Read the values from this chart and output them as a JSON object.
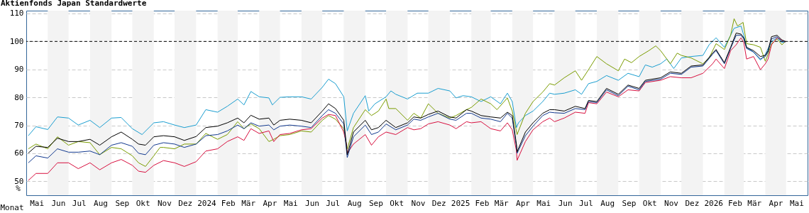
{
  "chart_data": {
    "type": "line",
    "title": "Aktienfonds Japan Standardwerte",
    "xlabel": "Monat",
    "ylabel": "%",
    "xlim": [
      "2023-05-01",
      "2026-06-01"
    ],
    "ylim": [
      45,
      111
    ],
    "yticks": [
      50,
      60,
      70,
      80,
      90,
      100,
      110
    ],
    "xticks": [
      {
        "value": "2023-05-16",
        "label": "Mai"
      },
      {
        "value": "2023-06-16",
        "label": "Jun"
      },
      {
        "value": "2023-07-16",
        "label": "Jul"
      },
      {
        "value": "2023-08-16",
        "label": "Aug"
      },
      {
        "value": "2023-09-16",
        "label": "Sep"
      },
      {
        "value": "2023-10-16",
        "label": "Okt"
      },
      {
        "value": "2023-11-16",
        "label": "Nov"
      },
      {
        "value": "2023-12-16",
        "label": "Dez"
      },
      {
        "value": "2024-01-16",
        "label": "2024"
      },
      {
        "value": "2024-02-16",
        "label": "Feb"
      },
      {
        "value": "2024-03-16",
        "label": "Mär"
      },
      {
        "value": "2024-04-16",
        "label": "Apr"
      },
      {
        "value": "2024-05-16",
        "label": "Mai"
      },
      {
        "value": "2024-06-16",
        "label": "Jun"
      },
      {
        "value": "2024-07-16",
        "label": "Jul"
      },
      {
        "value": "2024-08-16",
        "label": "Aug"
      },
      {
        "value": "2024-09-16",
        "label": "Sep"
      },
      {
        "value": "2024-10-16",
        "label": "Okt"
      },
      {
        "value": "2024-11-16",
        "label": "Nov"
      },
      {
        "value": "2024-12-16",
        "label": "Dez"
      },
      {
        "value": "2025-01-16",
        "label": "2025"
      },
      {
        "value": "2025-02-16",
        "label": "Feb"
      },
      {
        "value": "2025-03-16",
        "label": "Mär"
      },
      {
        "value": "2025-04-16",
        "label": "Apr"
      },
      {
        "value": "2025-05-16",
        "label": "Mai"
      },
      {
        "value": "2025-06-16",
        "label": "Jun"
      },
      {
        "value": "2025-07-16",
        "label": "Jul"
      },
      {
        "value": "2025-08-16",
        "label": "Aug"
      },
      {
        "value": "2025-09-16",
        "label": "Sep"
      },
      {
        "value": "2025-10-16",
        "label": "Okt"
      },
      {
        "value": "2025-11-16",
        "label": "Nov"
      },
      {
        "value": "2025-12-16",
        "label": "Dez"
      },
      {
        "value": "2026-01-16",
        "label": "2026"
      },
      {
        "value": "2026-02-16",
        "label": "Feb"
      },
      {
        "value": "2026-03-16",
        "label": "Mär"
      },
      {
        "value": "2026-04-16",
        "label": "Apr"
      },
      {
        "value": "2026-05-16",
        "label": "Mai"
      }
    ],
    "grid": "y",
    "ref_lines": [
      {
        "axis": "y",
        "value": 100,
        "label": null,
        "color": "#000000",
        "line_style": "dashed"
      }
    ],
    "bands": [
      {
        "axis": "x",
        "from": "2023-06-01",
        "to": "2023-07-01",
        "label": null,
        "color": "#f3f3f3"
      },
      {
        "axis": "x",
        "from": "2023-08-01",
        "to": "2023-09-01",
        "label": null,
        "color": "#f3f3f3"
      },
      {
        "axis": "x",
        "from": "2023-10-01",
        "to": "2023-11-01",
        "label": null,
        "color": "#f3f3f3"
      },
      {
        "axis": "x",
        "from": "2023-12-01",
        "to": "2024-01-01",
        "label": null,
        "color": "#f3f3f3"
      },
      {
        "axis": "x",
        "from": "2024-02-01",
        "to": "2024-03-01",
        "label": null,
        "color": "#f3f3f3"
      },
      {
        "axis": "x",
        "from": "2024-04-01",
        "to": "2024-05-01",
        "label": null,
        "color": "#f3f3f3"
      },
      {
        "axis": "x",
        "from": "2024-06-01",
        "to": "2024-07-01",
        "label": null,
        "color": "#f3f3f3"
      },
      {
        "axis": "x",
        "from": "2024-08-01",
        "to": "2024-09-01",
        "label": null,
        "color": "#f3f3f3"
      },
      {
        "axis": "x",
        "from": "2024-10-01",
        "to": "2024-11-01",
        "label": null,
        "color": "#f3f3f3"
      },
      {
        "axis": "x",
        "from": "2024-12-01",
        "to": "2025-01-01",
        "label": null,
        "color": "#f3f3f3"
      },
      {
        "axis": "x",
        "from": "2025-02-01",
        "to": "2025-03-01",
        "label": null,
        "color": "#f3f3f3"
      },
      {
        "axis": "x",
        "from": "2025-04-01",
        "to": "2025-05-01",
        "label": null,
        "color": "#f3f3f3"
      },
      {
        "axis": "x",
        "from": "2025-06-01",
        "to": "2025-07-01",
        "label": null,
        "color": "#f3f3f3"
      },
      {
        "axis": "x",
        "from": "2025-08-01",
        "to": "2025-09-01",
        "label": null,
        "color": "#f3f3f3"
      },
      {
        "axis": "x",
        "from": "2025-10-01",
        "to": "2025-11-01",
        "label": null,
        "color": "#f3f3f3"
      },
      {
        "axis": "x",
        "from": "2025-12-01",
        "to": "2026-01-01",
        "label": null,
        "color": "#f3f3f3"
      },
      {
        "axis": "x",
        "from": "2026-02-01",
        "to": "2026-03-01",
        "label": null,
        "color": "#f3f3f3"
      },
      {
        "axis": "x",
        "from": "2026-04-01",
        "to": "2026-05-01",
        "label": null,
        "color": "#f3f3f3"
      }
    ],
    "series": [
      {
        "color": "#1a9ed0",
        "x": [
          "2023-05-04",
          "2023-05-15",
          "2023-06-01",
          "2023-06-15",
          "2023-07-01",
          "2023-07-15",
          "2023-08-01",
          "2023-08-15",
          "2023-09-01",
          "2023-09-15",
          "2023-10-01",
          "2023-10-15",
          "2023-11-01",
          "2023-11-15",
          "2023-12-01",
          "2023-12-15",
          "2024-01-01",
          "2024-01-15",
          "2024-02-01",
          "2024-02-15",
          "2024-03-01",
          "2024-03-10",
          "2024-03-20",
          "2024-04-01",
          "2024-04-15",
          "2024-04-20",
          "2024-05-01",
          "2024-05-15",
          "2024-06-01",
          "2024-06-15",
          "2024-07-01",
          "2024-07-10",
          "2024-07-20",
          "2024-08-01",
          "2024-08-06",
          "2024-08-15",
          "2024-09-01",
          "2024-09-06",
          "2024-09-15",
          "2024-10-01",
          "2024-10-08",
          "2024-10-15",
          "2024-11-01",
          "2024-11-15",
          "2024-12-01",
          "2024-12-15",
          "2025-01-01",
          "2025-01-10",
          "2025-01-20",
          "2025-02-01",
          "2025-02-15",
          "2025-03-01",
          "2025-03-15",
          "2025-03-25",
          "2025-04-01",
          "2025-04-07",
          "2025-04-10",
          "2025-04-20",
          "2025-05-01",
          "2025-05-15",
          "2025-05-25",
          "2025-06-01",
          "2025-06-15",
          "2025-07-01",
          "2025-07-10",
          "2025-07-20",
          "2025-08-01",
          "2025-08-15",
          "2025-09-01",
          "2025-09-15",
          "2025-10-01",
          "2025-10-10",
          "2025-10-20",
          "2025-11-01",
          "2025-11-10",
          "2025-11-20",
          "2025-12-01",
          "2025-12-15",
          "2026-01-01",
          "2026-01-10",
          "2026-01-20",
          "2026-02-01",
          "2026-02-10",
          "2026-02-15",
          "2026-02-25",
          "2026-03-01",
          "2026-03-05",
          "2026-03-15",
          "2026-03-25",
          "2026-04-01",
          "2026-04-10",
          "2026-04-18",
          "2026-04-25",
          "2026-04-30"
        ],
        "values": [
          66.3,
          69.5,
          68.5,
          73.0,
          72.6,
          70.1,
          71.8,
          69.2,
          72.6,
          72.8,
          68.8,
          66.7,
          70.9,
          71.3,
          70.1,
          69.2,
          70.1,
          75.6,
          74.7,
          76.8,
          79.4,
          77.3,
          82.1,
          80.2,
          79.8,
          77.3,
          80.0,
          80.2,
          80.2,
          79.4,
          83.6,
          86.5,
          84.9,
          80.2,
          68.0,
          74.3,
          80.6,
          75.1,
          77.7,
          80.2,
          82.3,
          81.1,
          79.4,
          81.5,
          81.5,
          83.2,
          82.3,
          79.8,
          80.6,
          80.2,
          78.5,
          80.2,
          77.7,
          81.5,
          78.5,
          69.2,
          70.9,
          73.5,
          75.1,
          78.5,
          81.5,
          81.1,
          81.5,
          82.7,
          81.1,
          84.9,
          85.7,
          87.8,
          86.1,
          88.6,
          87.4,
          91.6,
          90.8,
          92.0,
          93.7,
          90.3,
          94.1,
          94.6,
          95.0,
          98.8,
          101.3,
          97.9,
          102.2,
          104.7,
          105.5,
          102.2,
          97.9,
          96.2,
          93.3,
          95.4,
          100.0,
          101.3,
          99.6,
          100.0
        ]
      },
      {
        "color": "#7a9c00",
        "x": [
          "2023-05-04",
          "2023-05-15",
          "2023-06-01",
          "2023-06-15",
          "2023-07-01",
          "2023-07-15",
          "2023-08-01",
          "2023-08-15",
          "2023-09-01",
          "2023-09-15",
          "2023-10-01",
          "2023-10-10",
          "2023-10-20",
          "2023-11-01",
          "2023-11-10",
          "2023-11-15",
          "2023-12-01",
          "2023-12-15",
          "2024-01-01",
          "2024-01-15",
          "2024-02-01",
          "2024-02-15",
          "2024-03-01",
          "2024-03-10",
          "2024-03-20",
          "2024-04-01",
          "2024-04-15",
          "2024-04-22",
          "2024-05-01",
          "2024-05-15",
          "2024-06-01",
          "2024-06-15",
          "2024-07-01",
          "2024-07-10",
          "2024-07-20",
          "2024-08-01",
          "2024-08-06",
          "2024-08-15",
          "2024-09-01",
          "2024-09-10",
          "2024-09-20",
          "2024-10-01",
          "2024-10-05",
          "2024-10-15",
          "2024-11-01",
          "2024-11-10",
          "2024-11-20",
          "2024-12-01",
          "2024-12-15",
          "2025-01-01",
          "2025-01-10",
          "2025-01-25",
          "2025-02-01",
          "2025-02-15",
          "2025-03-01",
          "2025-03-10",
          "2025-03-25",
          "2025-04-01",
          "2025-04-08",
          "2025-04-20",
          "2025-05-01",
          "2025-05-15",
          "2025-05-25",
          "2025-06-01",
          "2025-06-15",
          "2025-07-01",
          "2025-07-10",
          "2025-07-20",
          "2025-08-01",
          "2025-08-15",
          "2025-09-01",
          "2025-09-10",
          "2025-09-20",
          "2025-10-01",
          "2025-10-15",
          "2025-10-25",
          "2025-11-01",
          "2025-11-15",
          "2025-11-25",
          "2025-12-01",
          "2025-12-15",
          "2026-01-01",
          "2026-01-10",
          "2026-01-20",
          "2026-02-01",
          "2026-02-10",
          "2026-02-15",
          "2026-02-20",
          "2026-02-28",
          "2026-03-05",
          "2026-03-15",
          "2026-03-25",
          "2026-04-01",
          "2026-04-05",
          "2026-04-10",
          "2026-04-18",
          "2026-04-25",
          "2026-04-30"
        ],
        "values": [
          61.6,
          63.3,
          61.6,
          65.9,
          62.9,
          64.2,
          63.8,
          59.5,
          62.1,
          61.6,
          59.1,
          56.6,
          55.3,
          59.1,
          62.1,
          62.1,
          61.6,
          63.3,
          63.3,
          67.1,
          65.0,
          66.7,
          71.3,
          68.8,
          70.5,
          68.8,
          64.2,
          65.0,
          66.3,
          66.7,
          68.0,
          67.6,
          71.8,
          73.5,
          72.2,
          68.8,
          61.5,
          69.2,
          75.6,
          73.5,
          75.1,
          79.4,
          76.0,
          76.0,
          71.8,
          74.3,
          72.6,
          77.7,
          74.3,
          72.6,
          73.5,
          75.6,
          76.4,
          79.4,
          77.7,
          75.6,
          79.8,
          75.1,
          66.7,
          74.3,
          78.5,
          81.9,
          84.9,
          84.4,
          87.0,
          89.5,
          86.1,
          89.9,
          94.6,
          92.0,
          89.5,
          93.7,
          92.4,
          94.6,
          96.7,
          98.4,
          96.7,
          92.0,
          95.8,
          95.0,
          94.1,
          92.0,
          94.1,
          99.2,
          97.1,
          102.2,
          108.1,
          105.5,
          106.8,
          99.2,
          98.8,
          97.9,
          92.9,
          95.4,
          99.2,
          100.9,
          98.8,
          100.0
        ]
      },
      {
        "color": "#d8103f",
        "x": [
          "2023-05-04",
          "2023-05-15",
          "2023-06-01",
          "2023-06-15",
          "2023-07-01",
          "2023-07-15",
          "2023-08-01",
          "2023-08-15",
          "2023-09-01",
          "2023-09-15",
          "2023-10-01",
          "2023-10-10",
          "2023-10-20",
          "2023-11-01",
          "2023-11-15",
          "2023-12-01",
          "2023-12-15",
          "2024-01-01",
          "2024-01-15",
          "2024-02-01",
          "2024-02-15",
          "2024-03-01",
          "2024-03-10",
          "2024-03-20",
          "2024-04-01",
          "2024-04-15",
          "2024-04-22",
          "2024-05-01",
          "2024-05-15",
          "2024-06-01",
          "2024-06-15",
          "2024-07-01",
          "2024-07-10",
          "2024-07-20",
          "2024-08-01",
          "2024-08-05",
          "2024-08-06",
          "2024-08-15",
          "2024-09-01",
          "2024-09-10",
          "2024-09-20",
          "2024-10-01",
          "2024-10-15",
          "2024-11-01",
          "2024-11-10",
          "2024-11-20",
          "2024-12-01",
          "2024-12-15",
          "2025-01-01",
          "2025-01-10",
          "2025-01-25",
          "2025-02-01",
          "2025-02-15",
          "2025-03-01",
          "2025-03-15",
          "2025-03-25",
          "2025-04-01",
          "2025-04-07",
          "2025-04-08",
          "2025-04-20",
          "2025-05-01",
          "2025-05-15",
          "2025-05-25",
          "2025-06-01",
          "2025-06-15",
          "2025-07-01",
          "2025-07-15",
          "2025-07-20",
          "2025-08-01",
          "2025-08-15",
          "2025-09-01",
          "2025-09-15",
          "2025-10-01",
          "2025-10-10",
          "2025-11-01",
          "2025-11-15",
          "2025-12-01",
          "2025-12-15",
          "2026-01-01",
          "2026-01-15",
          "2026-01-20",
          "2026-02-01",
          "2026-02-10",
          "2026-02-18",
          "2026-02-25",
          "2026-03-01",
          "2026-03-05",
          "2026-03-15",
          "2026-03-25",
          "2026-04-01",
          "2026-04-05",
          "2026-04-10",
          "2026-04-18",
          "2026-04-25",
          "2026-04-30"
        ],
        "values": [
          50.3,
          52.8,
          52.8,
          56.6,
          56.6,
          54.5,
          56.6,
          54.1,
          56.6,
          57.8,
          55.7,
          53.6,
          53.2,
          55.7,
          57.4,
          56.6,
          55.3,
          57.0,
          60.8,
          61.6,
          64.2,
          65.9,
          64.6,
          68.8,
          67.1,
          68.0,
          64.2,
          66.7,
          67.1,
          68.4,
          68.8,
          72.6,
          73.9,
          73.5,
          67.6,
          63.0,
          60.0,
          63.3,
          66.7,
          62.9,
          65.9,
          67.6,
          66.7,
          69.2,
          68.4,
          68.8,
          70.5,
          71.3,
          70.1,
          68.8,
          71.3,
          70.9,
          71.3,
          68.8,
          68.0,
          70.9,
          68.4,
          61.0,
          57.5,
          64.2,
          68.4,
          71.3,
          72.6,
          71.3,
          72.6,
          74.7,
          74.3,
          78.1,
          77.7,
          81.9,
          80.2,
          82.7,
          82.3,
          85.3,
          86.1,
          87.4,
          87.0,
          87.0,
          88.6,
          92.0,
          93.7,
          90.3,
          96.7,
          98.8,
          101.3,
          99.6,
          93.7,
          94.6,
          89.9,
          92.0,
          93.7,
          98.8,
          101.3,
          100.5,
          99.8
        ]
      },
      {
        "color": "#12398f",
        "x": [
          "2023-05-04",
          "2023-05-15",
          "2023-06-01",
          "2023-06-15",
          "2023-07-01",
          "2023-07-15",
          "2023-08-01",
          "2023-08-15",
          "2023-09-01",
          "2023-09-15",
          "2023-10-01",
          "2023-10-10",
          "2023-10-20",
          "2023-11-01",
          "2023-11-15",
          "2023-12-01",
          "2023-12-15",
          "2024-01-01",
          "2024-01-15",
          "2024-02-01",
          "2024-02-15",
          "2024-03-01",
          "2024-03-10",
          "2024-03-20",
          "2024-04-01",
          "2024-04-15",
          "2024-04-22",
          "2024-05-01",
          "2024-05-15",
          "2024-06-01",
          "2024-06-15",
          "2024-07-01",
          "2024-07-10",
          "2024-07-20",
          "2024-08-01",
          "2024-08-05",
          "2024-08-06",
          "2024-08-15",
          "2024-09-01",
          "2024-09-10",
          "2024-09-20",
          "2024-10-01",
          "2024-10-15",
          "2024-11-01",
          "2024-11-10",
          "2024-11-20",
          "2024-12-01",
          "2024-12-15",
          "2025-01-01",
          "2025-01-10",
          "2025-01-25",
          "2025-02-01",
          "2025-02-15",
          "2025-03-01",
          "2025-03-15",
          "2025-03-25",
          "2025-04-01",
          "2025-04-07",
          "2025-04-08",
          "2025-04-20",
          "2025-05-01",
          "2025-05-15",
          "2025-05-25",
          "2025-06-01",
          "2025-06-15",
          "2025-07-01",
          "2025-07-15",
          "2025-07-20",
          "2025-08-01",
          "2025-08-15",
          "2025-09-01",
          "2025-09-15",
          "2025-10-01",
          "2025-10-10",
          "2025-11-01",
          "2025-11-15",
          "2025-12-01",
          "2025-12-15",
          "2026-01-01",
          "2026-01-15",
          "2026-01-20",
          "2026-02-01",
          "2026-02-10",
          "2026-02-18",
          "2026-02-25",
          "2026-03-01",
          "2026-03-05",
          "2026-03-15",
          "2026-03-25",
          "2026-04-01",
          "2026-04-05",
          "2026-04-10",
          "2026-04-18",
          "2026-04-25",
          "2026-04-30"
        ],
        "values": [
          56.6,
          59.1,
          58.3,
          61.6,
          60.4,
          60.4,
          60.8,
          59.5,
          62.9,
          63.8,
          62.5,
          60.0,
          59.5,
          62.9,
          63.8,
          63.3,
          62.1,
          63.3,
          66.3,
          66.7,
          68.0,
          70.1,
          68.8,
          70.9,
          69.7,
          70.1,
          68.4,
          69.7,
          70.1,
          69.7,
          69.2,
          73.5,
          75.6,
          74.3,
          70.5,
          61.0,
          58.5,
          65.9,
          70.1,
          66.7,
          67.6,
          70.5,
          68.4,
          70.1,
          72.2,
          71.8,
          73.0,
          74.3,
          72.2,
          71.8,
          74.3,
          74.3,
          72.6,
          72.2,
          71.3,
          74.3,
          72.6,
          62.5,
          60.0,
          66.3,
          69.7,
          73.5,
          74.7,
          74.5,
          74.3,
          76.0,
          75.6,
          78.5,
          78.1,
          82.7,
          80.6,
          84.0,
          82.7,
          85.7,
          86.5,
          88.6,
          88.2,
          90.8,
          91.2,
          95.4,
          96.7,
          92.0,
          97.5,
          102.2,
          102.2,
          100.9,
          97.5,
          96.2,
          93.7,
          94.6,
          96.2,
          100.9,
          101.7,
          100.0,
          99.8
        ]
      },
      {
        "color": "#000000",
        "x": [
          "2023-05-04",
          "2023-05-15",
          "2023-06-01",
          "2023-06-15",
          "2023-07-01",
          "2023-07-15",
          "2023-08-01",
          "2023-08-15",
          "2023-09-01",
          "2023-09-15",
          "2023-10-01",
          "2023-10-10",
          "2023-10-20",
          "2023-11-01",
          "2023-11-15",
          "2023-12-01",
          "2023-12-15",
          "2024-01-01",
          "2024-01-15",
          "2024-02-01",
          "2024-02-15",
          "2024-03-01",
          "2024-03-10",
          "2024-03-20",
          "2024-04-01",
          "2024-04-15",
          "2024-04-22",
          "2024-05-01",
          "2024-05-15",
          "2024-06-01",
          "2024-06-15",
          "2024-07-01",
          "2024-07-10",
          "2024-07-20",
          "2024-08-01",
          "2024-08-05",
          "2024-08-06",
          "2024-08-15",
          "2024-09-01",
          "2024-09-10",
          "2024-09-20",
          "2024-10-01",
          "2024-10-15",
          "2024-11-01",
          "2024-11-10",
          "2024-11-20",
          "2024-12-01",
          "2024-12-15",
          "2025-01-01",
          "2025-01-10",
          "2025-01-25",
          "2025-02-01",
          "2025-02-15",
          "2025-03-01",
          "2025-03-15",
          "2025-03-25",
          "2025-04-01",
          "2025-04-07",
          "2025-04-08",
          "2025-04-20",
          "2025-05-01",
          "2025-05-15",
          "2025-05-25",
          "2025-06-01",
          "2025-06-15",
          "2025-07-01",
          "2025-07-15",
          "2025-07-20",
          "2025-08-01",
          "2025-08-15",
          "2025-09-01",
          "2025-09-15",
          "2025-10-01",
          "2025-10-10",
          "2025-11-01",
          "2025-11-15",
          "2025-12-01",
          "2025-12-15",
          "2026-01-01",
          "2026-01-15",
          "2026-01-20",
          "2026-02-01",
          "2026-02-10",
          "2026-02-18",
          "2026-02-25",
          "2026-03-01",
          "2026-03-05",
          "2026-03-15",
          "2026-03-25",
          "2026-04-01",
          "2026-04-05",
          "2026-04-10",
          "2026-04-18",
          "2026-04-25",
          "2026-04-30"
        ],
        "values": [
          60.1,
          62.5,
          62.1,
          65.4,
          64.2,
          64.2,
          65.0,
          62.9,
          65.9,
          67.6,
          65.0,
          63.3,
          62.9,
          65.9,
          66.3,
          65.9,
          64.6,
          66.0,
          69.2,
          69.7,
          70.9,
          72.6,
          70.9,
          73.6,
          72.2,
          72.6,
          70.1,
          71.8,
          72.2,
          71.8,
          70.9,
          75.1,
          77.7,
          76.0,
          71.8,
          62.5,
          59.5,
          67.6,
          71.8,
          68.4,
          69.2,
          71.8,
          69.2,
          70.9,
          73.0,
          72.6,
          73.9,
          75.1,
          73.0,
          72.6,
          75.6,
          75.1,
          73.5,
          73.0,
          72.6,
          74.7,
          73.5,
          63.3,
          60.5,
          67.6,
          70.9,
          74.3,
          75.6,
          75.6,
          75.1,
          76.8,
          76.0,
          78.9,
          78.5,
          83.2,
          81.1,
          84.4,
          83.2,
          86.1,
          87.0,
          89.1,
          88.6,
          91.2,
          91.6,
          95.8,
          97.1,
          92.4,
          97.9,
          103.0,
          102.6,
          101.3,
          97.9,
          96.7,
          94.6,
          95.0,
          96.7,
          101.7,
          102.2,
          100.5,
          100.0
        ]
      }
    ]
  }
}
